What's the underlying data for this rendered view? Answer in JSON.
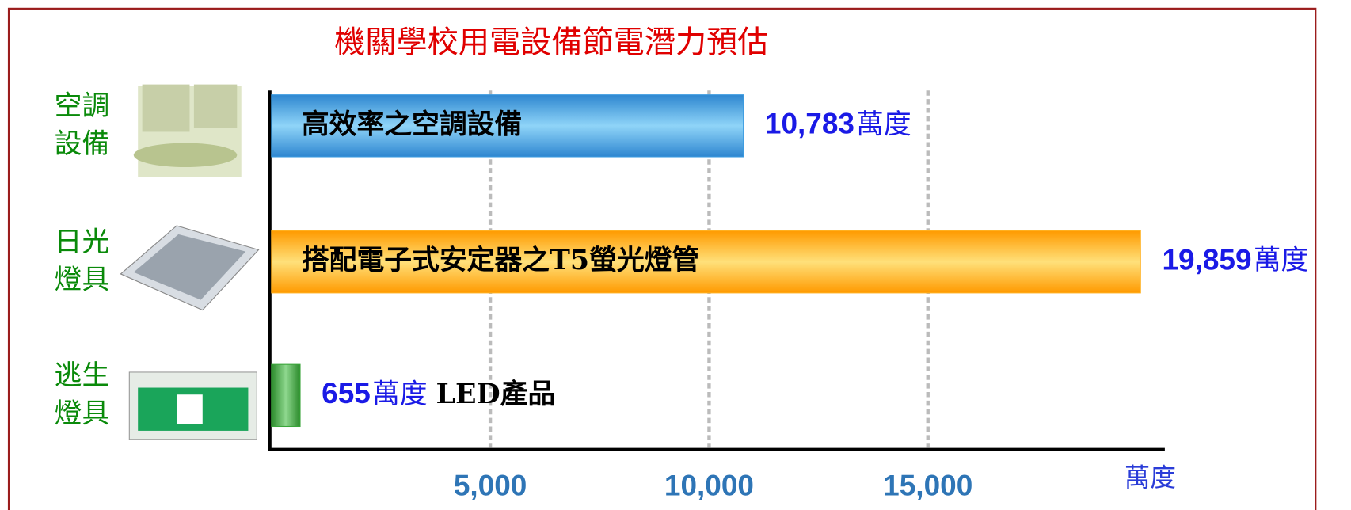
{
  "chart_data": {
    "type": "bar",
    "orientation": "horizontal",
    "title": "機關學校用電設備節電潛力預估",
    "categories": [
      "空調設備",
      "日光燈具",
      "逃生燈具"
    ],
    "bar_labels": [
      "高效率之空調設備",
      "搭配電子式安定器之T5螢光燈管",
      "LED產品"
    ],
    "values": [
      10783,
      19859,
      655
    ],
    "value_labels": [
      "10,783",
      "19,859",
      "655"
    ],
    "colors": [
      "#3b9be0",
      "#ffb020",
      "#3aa53a"
    ],
    "xlabel": "萬度",
    "xlim": [
      0,
      20400
    ],
    "xticks": [
      {
        "value": 5000,
        "label": "5,000"
      },
      {
        "value": 10000,
        "label": "10,000"
      },
      {
        "value": 15000,
        "label": "15,000"
      }
    ],
    "grid": true
  }
}
